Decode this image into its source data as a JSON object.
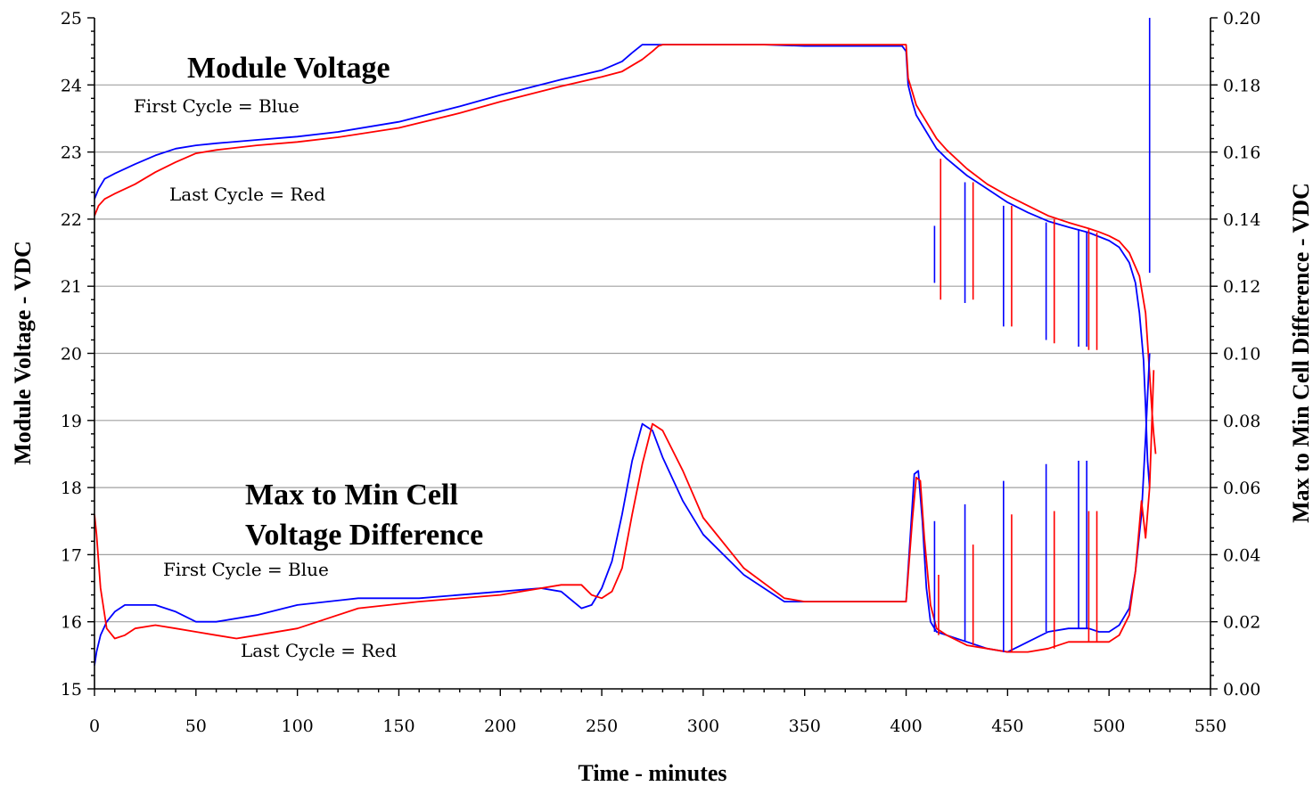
{
  "chart_data": {
    "type": "line",
    "xlabel": "Time - minutes",
    "ylabel_left": "Module Voltage - VDC",
    "ylabel_right": "Max to Min Cell Difference - VDC",
    "xlim": [
      0,
      550
    ],
    "ylim_left": [
      15,
      25
    ],
    "ylim_right": [
      0,
      0.2
    ],
    "x_ticks": [
      "0",
      "50",
      "100",
      "150",
      "200",
      "250",
      "300",
      "350",
      "400",
      "450",
      "500",
      "550"
    ],
    "y_ticks_left": [
      "15",
      "16",
      "17",
      "18",
      "19",
      "20",
      "21",
      "22",
      "23",
      "24",
      "25"
    ],
    "y_ticks_right": [
      "0.00",
      "0.02",
      "0.04",
      "0.06",
      "0.08",
      "0.10",
      "0.12",
      "0.14",
      "0.16",
      "0.18",
      "0.20"
    ],
    "grid": true,
    "colors": {
      "first": "#0000ff",
      "last": "#ff0000"
    },
    "annotations": {
      "module_title": "Module Voltage",
      "module_first": "First Cycle = Blue",
      "module_last": "Last Cycle = Red",
      "diff_title_1": "Max to Min Cell",
      "diff_title_2": "Voltage Difference",
      "diff_first": "First Cycle = Blue",
      "diff_last": "Last Cycle = Red"
    },
    "series": [
      {
        "axis": "left",
        "color": "#0000ff",
        "x": [
          0,
          2,
          5,
          10,
          20,
          30,
          40,
          50,
          60,
          80,
          100,
          120,
          150,
          180,
          200,
          230,
          250,
          260,
          265,
          270,
          275,
          280,
          300,
          330,
          350,
          360,
          380,
          398,
          400,
          401,
          403,
          405,
          410,
          415,
          420,
          430,
          440,
          450,
          460,
          470,
          480,
          490,
          495,
          500,
          505,
          510,
          513,
          515,
          517,
          518,
          519,
          520
        ],
        "y": [
          22.3,
          22.45,
          22.6,
          22.68,
          22.82,
          22.95,
          23.05,
          23.1,
          23.13,
          23.18,
          23.23,
          23.3,
          23.45,
          23.68,
          23.85,
          24.08,
          24.22,
          24.35,
          24.48,
          24.6,
          24.6,
          24.6,
          24.6,
          24.6,
          24.58,
          24.58,
          24.58,
          24.58,
          24.5,
          24.0,
          23.75,
          23.55,
          23.3,
          23.05,
          22.9,
          22.65,
          22.45,
          22.25,
          22.1,
          21.97,
          21.88,
          21.8,
          21.74,
          21.68,
          21.58,
          21.35,
          21.05,
          20.6,
          19.9,
          19.2,
          18.4,
          18.0
        ]
      },
      {
        "axis": "left",
        "color": "#ff0000",
        "x": [
          0,
          2,
          5,
          10,
          20,
          30,
          40,
          50,
          60,
          80,
          100,
          120,
          150,
          180,
          200,
          230,
          250,
          260,
          270,
          275,
          278,
          280,
          300,
          330,
          350,
          380,
          400,
          401,
          403,
          405,
          410,
          415,
          420,
          430,
          440,
          450,
          460,
          470,
          480,
          490,
          495,
          500,
          505,
          510,
          515,
          518,
          520,
          521,
          522,
          523
        ],
        "y": [
          22.05,
          22.2,
          22.3,
          22.38,
          22.52,
          22.7,
          22.85,
          22.98,
          23.03,
          23.1,
          23.15,
          23.22,
          23.36,
          23.58,
          23.75,
          23.98,
          24.12,
          24.2,
          24.38,
          24.5,
          24.58,
          24.6,
          24.6,
          24.6,
          24.6,
          24.6,
          24.6,
          24.1,
          23.9,
          23.7,
          23.45,
          23.2,
          23.03,
          22.75,
          22.52,
          22.35,
          22.2,
          22.05,
          21.95,
          21.86,
          21.81,
          21.75,
          21.67,
          21.5,
          21.15,
          20.6,
          19.7,
          19.2,
          18.8,
          18.5
        ]
      },
      {
        "axis": "right",
        "color": "#0000ff",
        "x": [
          0,
          1,
          3,
          6,
          10,
          15,
          20,
          30,
          40,
          50,
          60,
          80,
          100,
          130,
          160,
          200,
          220,
          230,
          240,
          245,
          250,
          255,
          260,
          265,
          270,
          275,
          280,
          290,
          300,
          320,
          340,
          350,
          380,
          400,
          402,
          404,
          406,
          408,
          410,
          412,
          415,
          420,
          430,
          440,
          450,
          460,
          470,
          480,
          490,
          495,
          500,
          505,
          510,
          513,
          516,
          518,
          520
        ],
        "y": [
          0.007,
          0.011,
          0.016,
          0.02,
          0.023,
          0.025,
          0.025,
          0.025,
          0.023,
          0.02,
          0.02,
          0.022,
          0.025,
          0.027,
          0.027,
          0.029,
          0.03,
          0.029,
          0.024,
          0.025,
          0.03,
          0.038,
          0.052,
          0.068,
          0.079,
          0.077,
          0.069,
          0.056,
          0.046,
          0.034,
          0.026,
          0.026,
          0.026,
          0.026,
          0.045,
          0.064,
          0.065,
          0.05,
          0.03,
          0.02,
          0.017,
          0.016,
          0.014,
          0.012,
          0.011,
          0.014,
          0.017,
          0.018,
          0.018,
          0.017,
          0.017,
          0.019,
          0.024,
          0.035,
          0.052,
          0.075,
          0.1
        ]
      },
      {
        "axis": "right",
        "color": "#ff0000",
        "x": [
          0,
          1,
          3,
          6,
          10,
          15,
          20,
          30,
          40,
          50,
          60,
          70,
          80,
          100,
          130,
          160,
          200,
          230,
          240,
          245,
          250,
          255,
          260,
          265,
          270,
          275,
          280,
          290,
          300,
          320,
          340,
          350,
          380,
          400,
          403,
          405,
          407,
          409,
          412,
          415,
          420,
          430,
          440,
          450,
          460,
          470,
          480,
          490,
          500,
          505,
          510,
          513,
          516,
          518,
          520,
          522
        ],
        "y": [
          0.052,
          0.046,
          0.03,
          0.018,
          0.015,
          0.016,
          0.018,
          0.019,
          0.018,
          0.017,
          0.016,
          0.015,
          0.016,
          0.018,
          0.024,
          0.026,
          0.028,
          0.031,
          0.031,
          0.028,
          0.027,
          0.029,
          0.036,
          0.052,
          0.067,
          0.079,
          0.077,
          0.065,
          0.051,
          0.036,
          0.027,
          0.026,
          0.026,
          0.026,
          0.05,
          0.063,
          0.062,
          0.045,
          0.025,
          0.018,
          0.016,
          0.013,
          0.012,
          0.011,
          0.011,
          0.012,
          0.014,
          0.014,
          0.014,
          0.016,
          0.022,
          0.035,
          0.056,
          0.045,
          0.06,
          0.095
        ]
      }
    ],
    "spikes": [
      {
        "color": "#0000ff",
        "x": 414,
        "from": 21.9,
        "to": 21.05,
        "axis": "left"
      },
      {
        "color": "#0000ff",
        "x": 429,
        "from": 22.55,
        "to": 20.75,
        "axis": "left"
      },
      {
        "color": "#0000ff",
        "x": 448,
        "from": 22.2,
        "to": 20.4,
        "axis": "left"
      },
      {
        "color": "#0000ff",
        "x": 469,
        "from": 21.95,
        "to": 20.2,
        "axis": "left"
      },
      {
        "color": "#0000ff",
        "x": 485,
        "from": 21.85,
        "to": 20.1,
        "axis": "left"
      },
      {
        "color": "#0000ff",
        "x": 489,
        "from": 21.8,
        "to": 20.1,
        "axis": "left"
      },
      {
        "color": "#ff0000",
        "x": 417,
        "from": 22.9,
        "to": 20.8,
        "axis": "left"
      },
      {
        "color": "#ff0000",
        "x": 433,
        "from": 22.55,
        "to": 20.8,
        "axis": "left"
      },
      {
        "color": "#ff0000",
        "x": 452,
        "from": 22.2,
        "to": 20.4,
        "axis": "left"
      },
      {
        "color": "#ff0000",
        "x": 473,
        "from": 22.0,
        "to": 20.15,
        "axis": "left"
      },
      {
        "color": "#ff0000",
        "x": 490,
        "from": 21.85,
        "to": 20.05,
        "axis": "left"
      },
      {
        "color": "#ff0000",
        "x": 494,
        "from": 21.8,
        "to": 20.05,
        "axis": "left"
      },
      {
        "color": "#0000ff",
        "x": 414,
        "from": 0.017,
        "to": 0.05,
        "axis": "right"
      },
      {
        "color": "#0000ff",
        "x": 429,
        "from": 0.014,
        "to": 0.055,
        "axis": "right"
      },
      {
        "color": "#0000ff",
        "x": 448,
        "from": 0.011,
        "to": 0.062,
        "axis": "right"
      },
      {
        "color": "#0000ff",
        "x": 469,
        "from": 0.017,
        "to": 0.067,
        "axis": "right"
      },
      {
        "color": "#0000ff",
        "x": 485,
        "from": 0.018,
        "to": 0.068,
        "axis": "right"
      },
      {
        "color": "#0000ff",
        "x": 489,
        "from": 0.018,
        "to": 0.068,
        "axis": "right"
      },
      {
        "color": "#ff0000",
        "x": 416,
        "from": 0.016,
        "to": 0.034,
        "axis": "right"
      },
      {
        "color": "#ff0000",
        "x": 433,
        "from": 0.013,
        "to": 0.043,
        "axis": "right"
      },
      {
        "color": "#ff0000",
        "x": 452,
        "from": 0.011,
        "to": 0.052,
        "axis": "right"
      },
      {
        "color": "#ff0000",
        "x": 473,
        "from": 0.012,
        "to": 0.053,
        "axis": "right"
      },
      {
        "color": "#ff0000",
        "x": 490,
        "from": 0.014,
        "to": 0.053,
        "axis": "right"
      },
      {
        "color": "#ff0000",
        "x": 494,
        "from": 0.014,
        "to": 0.053,
        "axis": "right"
      },
      {
        "color": "#0000ff",
        "x": 520,
        "from": 21.2,
        "to": 25.0,
        "axis": "left"
      }
    ]
  }
}
